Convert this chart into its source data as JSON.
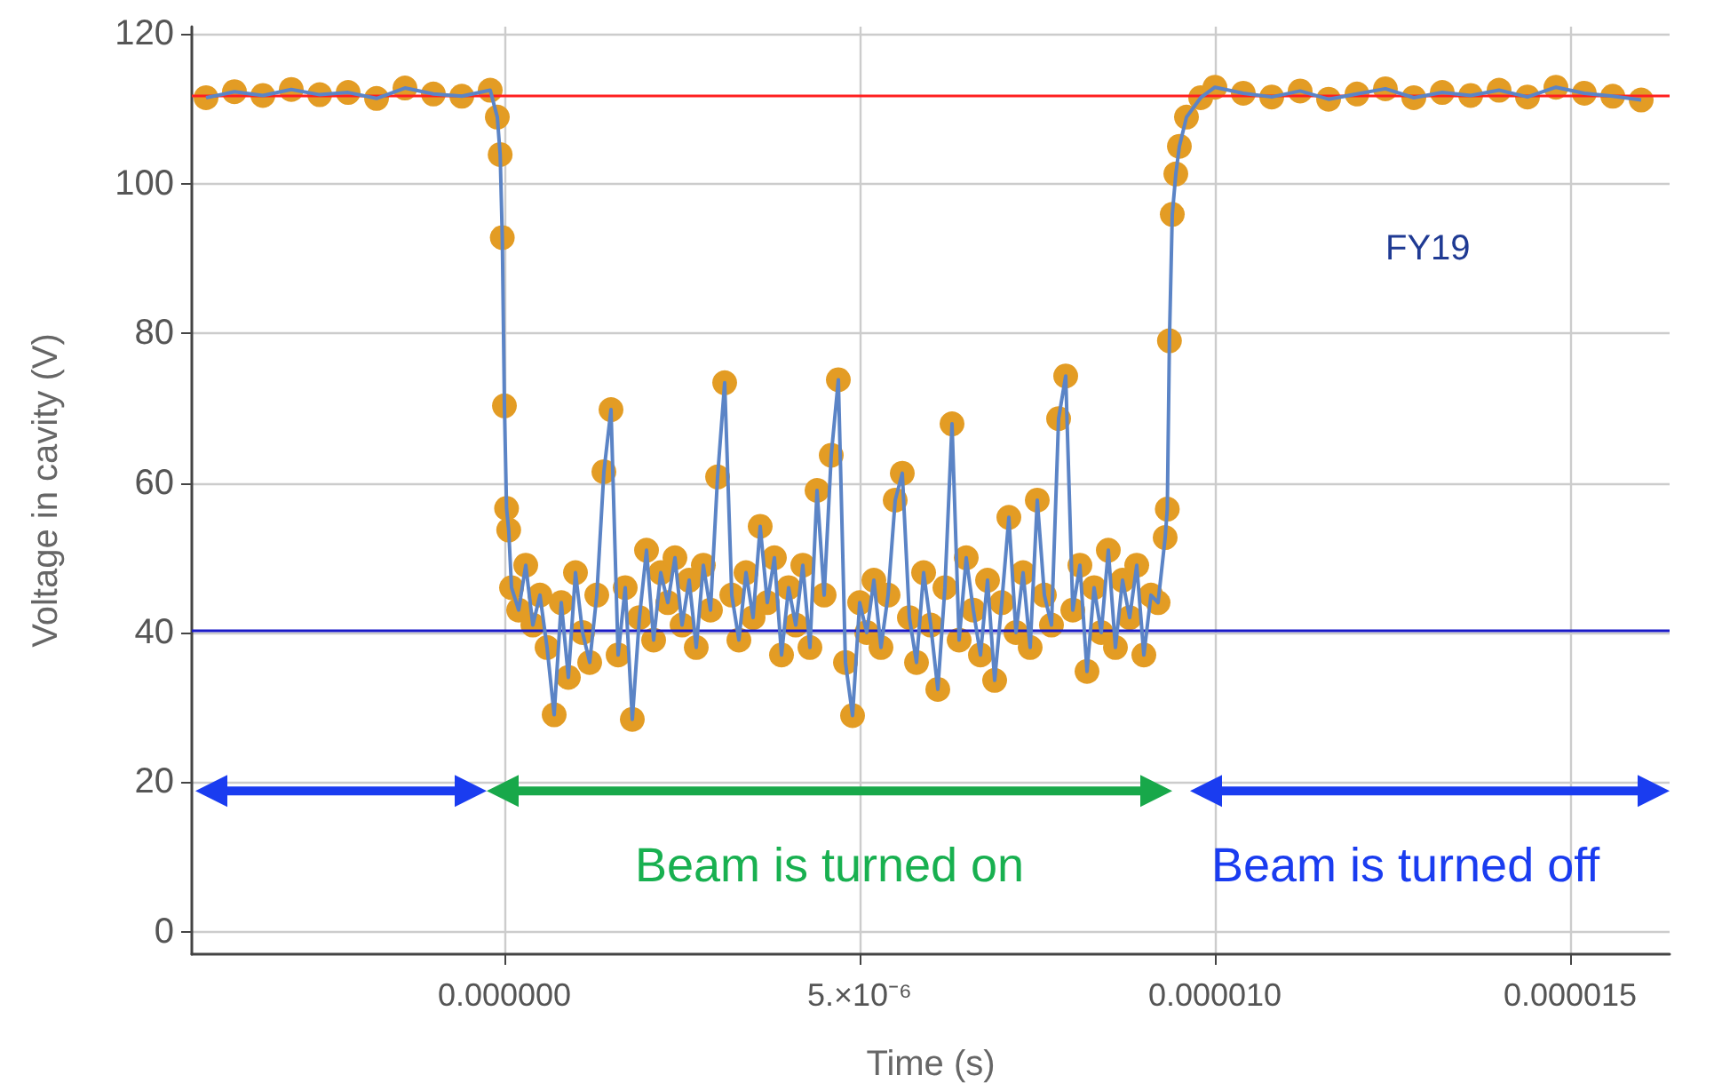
{
  "chart_data": {
    "type": "scatter",
    "xlabel": "Time (s)",
    "ylabel": "Voltage in cavity (V)",
    "annotations": [
      "FY19",
      "Beam is turned on",
      "Beam is turned off"
    ],
    "x": [
      -4.2e-06,
      -3.8e-06,
      -3.4e-06,
      -3e-06,
      -2.6e-06,
      -2.2e-06,
      -1.8e-06,
      -1.4e-06,
      -1e-06,
      -6e-07,
      -2e-07,
      -1e-07,
      -6e-08,
      -3e-08,
      0,
      3e-08,
      6e-08,
      1e-07,
      2e-07,
      3e-07,
      4e-07,
      5e-07,
      6e-07,
      7e-07,
      8e-07,
      9e-07,
      1e-06,
      1.1e-06,
      1.2e-06,
      1.3e-06,
      1.4e-06,
      1.5e-06,
      1.6e-06,
      1.7e-06,
      1.8e-06,
      1.9e-06,
      2e-06,
      2.1e-06,
      2.2e-06,
      2.3e-06,
      2.4e-06,
      2.5e-06,
      2.6e-06,
      2.7e-06,
      2.8e-06,
      2.9e-06,
      3e-06,
      3.1e-06,
      3.2e-06,
      3.3e-06,
      3.4e-06,
      3.5e-06,
      3.6e-06,
      3.7e-06,
      3.8e-06,
      3.9e-06,
      4e-06,
      4.1e-06,
      4.2e-06,
      4.3e-06,
      4.4e-06,
      4.5e-06,
      4.6e-06,
      4.7e-06,
      4.8e-06,
      4.9e-06,
      5e-06,
      5.1e-06,
      5.2e-06,
      5.3e-06,
      5.4e-06,
      5.5e-06,
      5.6e-06,
      5.7e-06,
      5.8e-06,
      5.9e-06,
      6e-06,
      6.1e-06,
      6.2e-06,
      6.3e-06,
      6.4e-06,
      6.5e-06,
      6.6e-06,
      6.7e-06,
      6.8e-06,
      6.9e-06,
      7e-06,
      7.1e-06,
      7.2e-06,
      7.3e-06,
      7.4e-06,
      7.5e-06,
      7.6e-06,
      7.7e-06,
      7.8e-06,
      7.9e-06,
      8e-06,
      8.1e-06,
      8.2e-06,
      8.3e-06,
      8.4e-06,
      8.5e-06,
      8.6e-06,
      8.7e-06,
      8.8e-06,
      8.9e-06,
      9e-06,
      9.1e-06,
      9.2e-06,
      9.3e-06,
      9.33e-06,
      9.36e-06,
      9.4e-06,
      9.45e-06,
      9.5e-06,
      9.6e-06,
      9.8e-06,
      1e-05,
      1.04e-05,
      1.08e-05,
      1.12e-05,
      1.16e-05,
      1.2e-05,
      1.24e-05,
      1.28e-05,
      1.32e-05,
      1.36e-05,
      1.4e-05,
      1.44e-05,
      1.48e-05,
      1.52e-05,
      1.56e-05,
      1.6e-05
    ],
    "series": [
      {
        "color": "#e39c24",
        "values": [
          111.5,
          112.3,
          111.8,
          112.6,
          111.9,
          112.2,
          111.4,
          112.8,
          112.0,
          111.7,
          112.5,
          108.9,
          103.9,
          92.8,
          70.3,
          56.6,
          53.7,
          46,
          43,
          49,
          41,
          45,
          38,
          29,
          44,
          34,
          48,
          40,
          36,
          45,
          61.5,
          69.8,
          37,
          46,
          28.4,
          42,
          51,
          39,
          48,
          44,
          50,
          41,
          47,
          38,
          49,
          43,
          60.8,
          73.4,
          45,
          39,
          48,
          42,
          54.2,
          44,
          50,
          37,
          46,
          41,
          49,
          38,
          59,
          45,
          63.7,
          73.8,
          36,
          28.9,
          44,
          40,
          47,
          38,
          45,
          57.7,
          61.3,
          42,
          36,
          48,
          41,
          32.4,
          46,
          67.9,
          39,
          50,
          43,
          37,
          47,
          33.6,
          44,
          55.4,
          40,
          48,
          38,
          57.7,
          45,
          41,
          68.6,
          74.3,
          43,
          49,
          34.8,
          46,
          40,
          51,
          38,
          47,
          42,
          49,
          37,
          45,
          44,
          52.7,
          56.5,
          79,
          95.9,
          101.3,
          105,
          108.9,
          111.5,
          112.9,
          112.1,
          111.6,
          112.4,
          111.3,
          112.0,
          112.7,
          111.5,
          112.2,
          111.8,
          112.5,
          111.6,
          112.9,
          112.1,
          111.7,
          111.2
        ]
      },
      {
        "type": "line",
        "marker": "none",
        "color": "#5b84c6",
        "values": [
          111.5,
          112.3,
          111.8,
          112.6,
          111.9,
          112.2,
          111.4,
          112.8,
          112.0,
          111.7,
          112.5,
          108.9,
          103.9,
          92.8,
          70.3,
          56.6,
          53.7,
          46,
          43,
          49,
          41,
          45,
          38,
          29,
          44,
          34,
          48,
          40,
          36,
          45,
          61.5,
          69.8,
          37,
          46,
          28.4,
          42,
          51,
          39,
          48,
          44,
          50,
          41,
          47,
          38,
          49,
          43,
          60.8,
          73.4,
          45,
          39,
          48,
          42,
          54.2,
          44,
          50,
          37,
          46,
          41,
          49,
          38,
          59,
          45,
          63.7,
          73.8,
          36,
          28.9,
          44,
          40,
          47,
          38,
          45,
          57.7,
          61.3,
          42,
          36,
          48,
          41,
          32.4,
          46,
          67.9,
          39,
          50,
          43,
          37,
          47,
          33.6,
          44,
          55.4,
          40,
          48,
          38,
          57.7,
          45,
          41,
          68.6,
          74.3,
          43,
          49,
          34.8,
          46,
          40,
          51,
          38,
          47,
          42,
          49,
          37,
          45,
          44,
          52.7,
          56.5,
          79,
          95.9,
          101.3,
          105,
          108.9,
          111.5,
          112.9,
          112.1,
          111.6,
          112.4,
          111.3,
          112.0,
          112.7,
          111.5,
          112.2,
          111.8,
          112.5,
          111.6,
          112.9,
          112.1,
          111.7,
          111.2
        ]
      }
    ],
    "xlim": [
      -4.4e-06,
      1.64e-05
    ],
    "xticks": [
      {
        "value": 0,
        "label": "0.000000"
      },
      {
        "value": 5e-06,
        "label": "5.×10⁻⁶"
      },
      {
        "value": 1e-05,
        "label": "0.000010"
      },
      {
        "value": 1.5e-05,
        "label": "0.000015"
      }
    ],
    "ylim": [
      -3,
      121
    ],
    "yticks": [
      0,
      20,
      40,
      60,
      80,
      100,
      120
    ],
    "ref_lines": [
      {
        "axis": "y",
        "value": 111.9,
        "color": "#ff2020"
      },
      {
        "axis": "y",
        "value": 40.3,
        "color": "#1a1ac8"
      }
    ],
    "grid": true,
    "marker": "circle",
    "line_style": "solid"
  }
}
